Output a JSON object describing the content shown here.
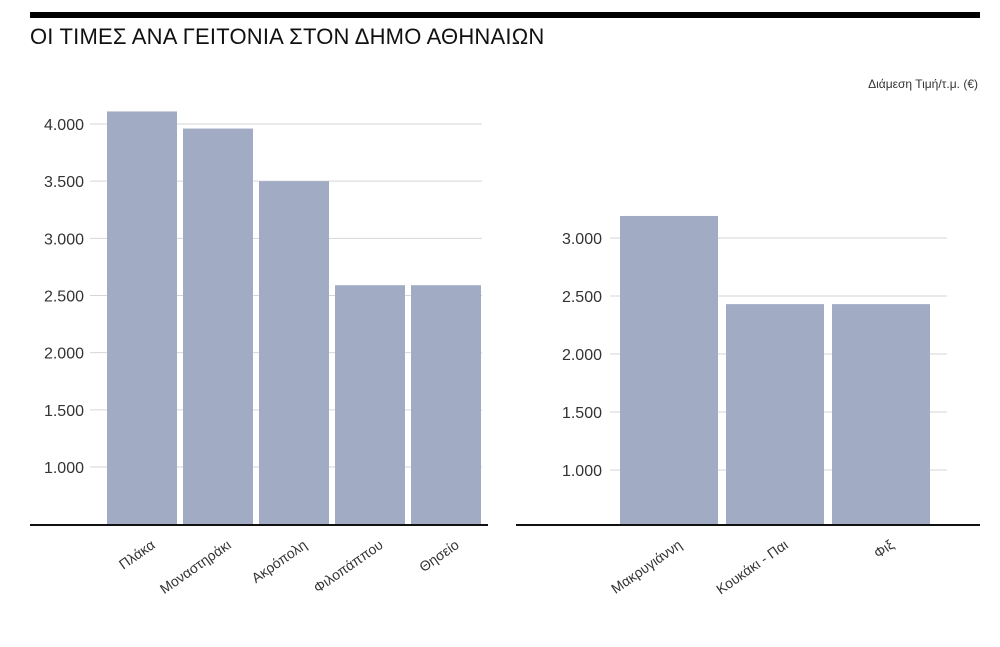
{
  "header": {
    "title": "ΟΙ ΤΙΜΕΣ ΑΝΑ ΓΕΙΤΟΝΙΑ ΣΤΟΝ ΔΗΜΟ ΑΘΗΝΑΙΩΝ",
    "unit_label": "Διάμεση Τιμή/τ.μ. (€)"
  },
  "colors": {
    "bar": "#a2abc4",
    "grid": "#d6d6d6",
    "axis": "#111111"
  },
  "chart_data": [
    {
      "type": "bar",
      "categories": [
        "Πλάκα",
        "Μοναστηράκι",
        "Ακρόπολη",
        "Φιλοπάππου",
        "Θησείο"
      ],
      "values": [
        4110,
        3960,
        3500,
        2590,
        2590
      ],
      "yticks": [
        "1.000",
        "1.500",
        "2.000",
        "2.500",
        "3.000",
        "3.500",
        "4.000"
      ],
      "ytick_values": [
        1000,
        1500,
        2000,
        2500,
        3000,
        3500,
        4000
      ],
      "ylim": [
        500,
        4250
      ],
      "grid": true
    },
    {
      "type": "bar",
      "categories": [
        "Μακρυγιάννη",
        "Κουκάκι - Παι",
        "Φιξ"
      ],
      "values": [
        3190,
        2430,
        2430
      ],
      "yticks": [
        "1.000",
        "1.500",
        "2.000",
        "2.500",
        "3.000"
      ],
      "ytick_values": [
        1000,
        1500,
        2000,
        2500,
        3000
      ],
      "ylim": [
        500,
        3400
      ],
      "grid": true
    }
  ]
}
